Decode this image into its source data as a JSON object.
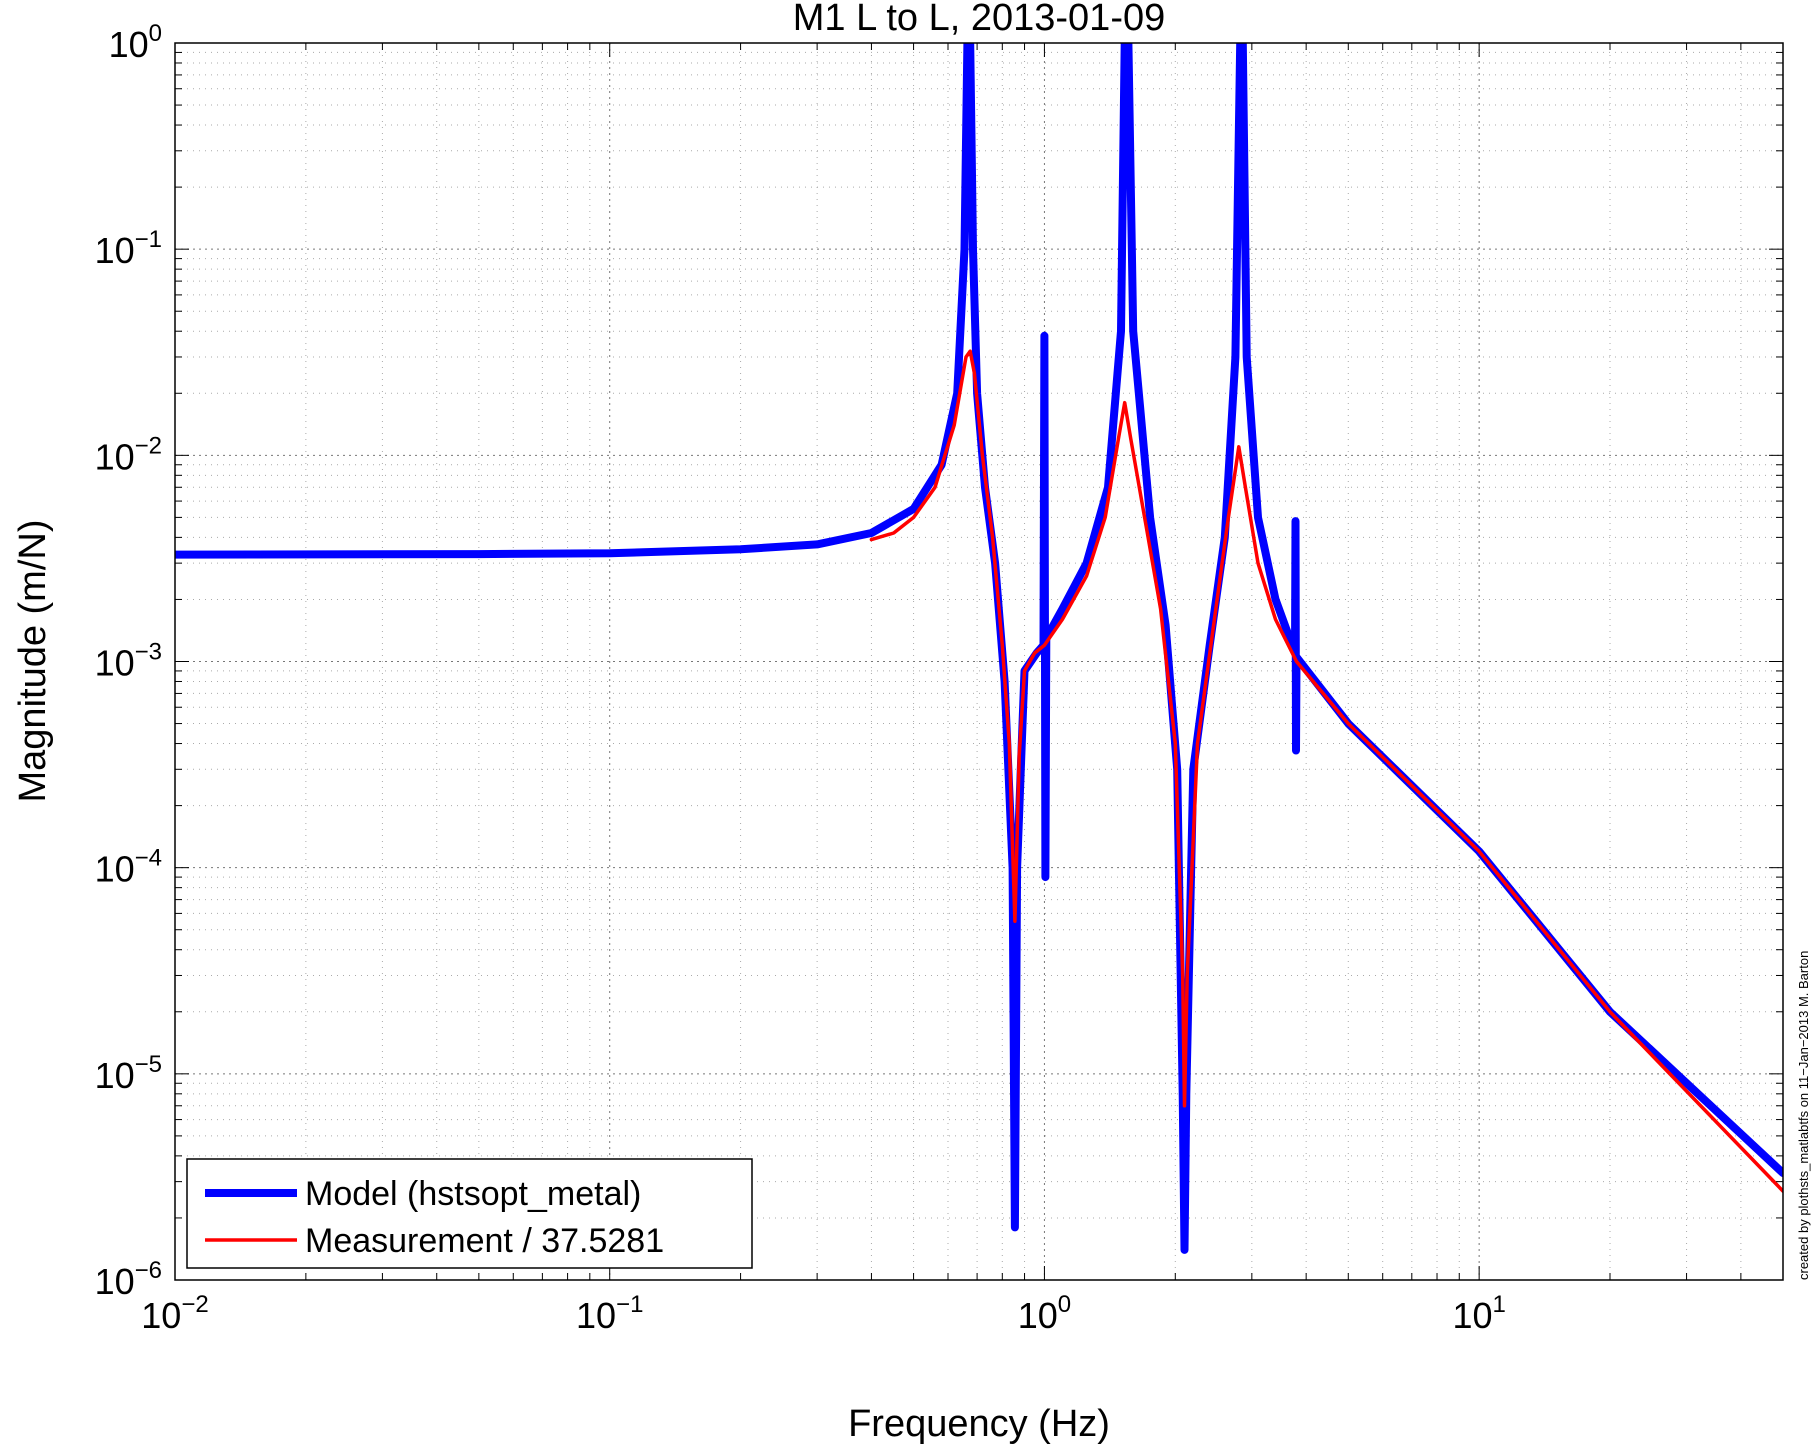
{
  "chart_data": {
    "type": "line",
    "title": "M1 L to L, 2013-01-09",
    "xlabel": "Frequency (Hz)",
    "ylabel": "Magnitude (m/N)",
    "xscale": "log",
    "yscale": "log",
    "xlim": [
      0.01,
      50
    ],
    "ylim": [
      1e-06,
      1
    ],
    "x_ticks": [
      {
        "base": "10",
        "exp": "−2",
        "value": 0.01
      },
      {
        "base": "10",
        "exp": "−1",
        "value": 0.1
      },
      {
        "base": "10",
        "exp": "0",
        "value": 1
      },
      {
        "base": "10",
        "exp": "1",
        "value": 10
      }
    ],
    "y_ticks": [
      {
        "base": "10",
        "exp": "0",
        "value": 1
      },
      {
        "base": "10",
        "exp": "−1",
        "value": 0.1
      },
      {
        "base": "10",
        "exp": "−2",
        "value": 0.01
      },
      {
        "base": "10",
        "exp": "−3",
        "value": 0.001
      },
      {
        "base": "10",
        "exp": "−4",
        "value": 0.0001
      },
      {
        "base": "10",
        "exp": "−5",
        "value": 1e-05
      },
      {
        "base": "10",
        "exp": "−6",
        "value": 1e-06
      }
    ],
    "grid": true,
    "legend_position": "bottom-left",
    "series": [
      {
        "name": "Model (hstsopt_metal)",
        "color": "#0000ff",
        "points": [
          [
            0.01,
            0.0033
          ],
          [
            0.05,
            0.00332
          ],
          [
            0.1,
            0.00335
          ],
          [
            0.2,
            0.0035
          ],
          [
            0.3,
            0.0037
          ],
          [
            0.4,
            0.0042
          ],
          [
            0.5,
            0.0055
          ],
          [
            0.58,
            0.009
          ],
          [
            0.63,
            0.02
          ],
          [
            0.655,
            0.1
          ],
          [
            0.665,
            1
          ],
          [
            0.675,
            1
          ],
          [
            0.685,
            0.1
          ],
          [
            0.7,
            0.02
          ],
          [
            0.73,
            0.007
          ],
          [
            0.77,
            0.003
          ],
          [
            0.81,
            0.0008
          ],
          [
            0.845,
            0.0001
          ],
          [
            0.855,
            1.8e-06
          ],
          [
            0.865,
            0.0001
          ],
          [
            0.9,
            0.0009
          ],
          [
            0.96,
            0.0011
          ],
          [
            0.995,
            0.0012
          ],
          [
            1.0,
            0.038
          ],
          [
            1.005,
            9e-05
          ],
          [
            1.01,
            0.0013
          ],
          [
            1.1,
            0.0018
          ],
          [
            1.25,
            0.003
          ],
          [
            1.4,
            0.007
          ],
          [
            1.5,
            0.04
          ],
          [
            1.53,
            1
          ],
          [
            1.56,
            1
          ],
          [
            1.6,
            0.04
          ],
          [
            1.75,
            0.005
          ],
          [
            1.9,
            0.0015
          ],
          [
            2.02,
            0.0003
          ],
          [
            2.08,
            8e-06
          ],
          [
            2.1,
            1.4e-06
          ],
          [
            2.12,
            8e-06
          ],
          [
            2.2,
            0.0003
          ],
          [
            2.4,
            0.0012
          ],
          [
            2.6,
            0.004
          ],
          [
            2.75,
            0.03
          ],
          [
            2.82,
            1
          ],
          [
            2.86,
            1
          ],
          [
            2.92,
            0.03
          ],
          [
            3.1,
            0.005
          ],
          [
            3.4,
            0.002
          ],
          [
            3.77,
            0.0011
          ],
          [
            3.78,
            0.0048
          ],
          [
            3.79,
            0.00037
          ],
          [
            3.8,
            0.00105
          ],
          [
            5,
            0.0005
          ],
          [
            10,
            0.00012
          ],
          [
            20,
            2e-05
          ],
          [
            50,
            3.3e-06
          ]
        ]
      },
      {
        "name": "Measurement / 37.5281",
        "color": "#ff0000",
        "points": [
          [
            0.4,
            0.0039
          ],
          [
            0.45,
            0.0042
          ],
          [
            0.5,
            0.005
          ],
          [
            0.56,
            0.007
          ],
          [
            0.62,
            0.014
          ],
          [
            0.66,
            0.03
          ],
          [
            0.675,
            0.032
          ],
          [
            0.69,
            0.025
          ],
          [
            0.72,
            0.01
          ],
          [
            0.76,
            0.004
          ],
          [
            0.8,
            0.0012
          ],
          [
            0.83,
            0.0004
          ],
          [
            0.855,
            5.5e-05
          ],
          [
            0.875,
            0.00035
          ],
          [
            0.9,
            0.0009
          ],
          [
            0.95,
            0.0011
          ],
          [
            1.0,
            0.0012
          ],
          [
            1.1,
            0.0016
          ],
          [
            1.25,
            0.0026
          ],
          [
            1.38,
            0.005
          ],
          [
            1.48,
            0.012
          ],
          [
            1.53,
            0.018
          ],
          [
            1.58,
            0.012
          ],
          [
            1.7,
            0.005
          ],
          [
            1.85,
            0.0018
          ],
          [
            2.0,
            0.0004
          ],
          [
            2.08,
            3e-05
          ],
          [
            2.1,
            7e-06
          ],
          [
            2.13,
            3e-05
          ],
          [
            2.25,
            0.0004
          ],
          [
            2.45,
            0.0015
          ],
          [
            2.65,
            0.005
          ],
          [
            2.8,
            0.011
          ],
          [
            2.9,
            0.007
          ],
          [
            3.1,
            0.003
          ],
          [
            3.4,
            0.0016
          ],
          [
            3.8,
            0.001
          ],
          [
            5,
            0.0005
          ],
          [
            10,
            0.00012
          ],
          [
            20,
            2e-05
          ],
          [
            50,
            2.7e-06
          ]
        ]
      }
    ]
  },
  "credit_text": "created by plothsts_matlabtfs on 11−Jan−2013 M. Barton"
}
